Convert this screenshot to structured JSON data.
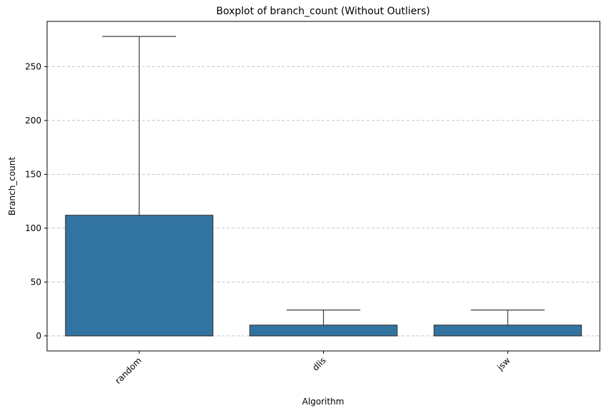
{
  "chart_data": {
    "type": "boxplot",
    "title": "Boxplot of branch_count (Without Outliers)",
    "xlabel": "Algorithm",
    "ylabel": "Branch_count",
    "categories": [
      "random",
      "dlis",
      "jsw"
    ],
    "boxes": [
      {
        "category": "random",
        "whislo": 0,
        "q1": 0,
        "med": 0,
        "q3": 112,
        "whishi": 278
      },
      {
        "category": "dlis",
        "whislo": 0,
        "q1": 0,
        "med": 0,
        "q3": 10,
        "whishi": 24
      },
      {
        "category": "jsw",
        "whislo": 0,
        "q1": 0,
        "med": 0,
        "q3": 10,
        "whishi": 24
      }
    ],
    "yticks": [
      0,
      50,
      100,
      150,
      200,
      250
    ],
    "ylim": [
      -14,
      292
    ],
    "grid": "y-dashed",
    "color": "#3274a1",
    "x_tick_rotation": 45
  }
}
